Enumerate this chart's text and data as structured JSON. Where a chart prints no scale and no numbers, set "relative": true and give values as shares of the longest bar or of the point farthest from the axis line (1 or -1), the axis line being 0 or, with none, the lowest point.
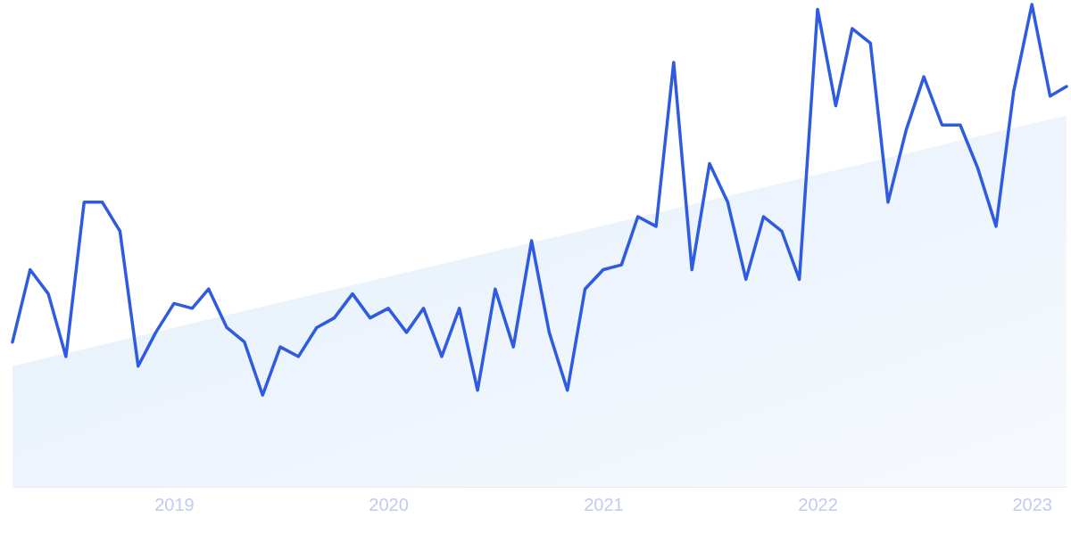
{
  "chart_data": {
    "type": "line",
    "relative": true,
    "tick_labels": "x",
    "marker": "none",
    "line_style": "solid",
    "xlim": [
      "2018-04",
      "2023-03"
    ],
    "xticks": [
      "2019",
      "2020",
      "2021",
      "2022",
      "2023"
    ],
    "series": [
      {
        "type": "area",
        "color": "#e3eefb",
        "x": [
          "2018-04",
          "2023-03"
        ],
        "values": [
          0.25,
          0.77
        ]
      },
      {
        "color": "#2e5be0",
        "x": [
          "2018-04",
          "2018-05",
          "2018-06",
          "2018-07",
          "2018-08",
          "2018-09",
          "2018-10",
          "2018-11",
          "2018-12",
          "2019-01",
          "2019-02",
          "2019-03",
          "2019-04",
          "2019-05",
          "2019-06",
          "2019-07",
          "2019-08",
          "2019-09",
          "2019-10",
          "2019-11",
          "2019-12",
          "2020-01",
          "2020-02",
          "2020-03",
          "2020-04",
          "2020-05",
          "2020-06",
          "2020-07",
          "2020-08",
          "2020-09",
          "2020-10",
          "2020-11",
          "2020-12",
          "2021-01",
          "2021-02",
          "2021-03",
          "2021-04",
          "2021-05",
          "2021-06",
          "2021-07",
          "2021-08",
          "2021-09",
          "2021-10",
          "2021-11",
          "2021-12",
          "2022-01",
          "2022-02",
          "2022-03",
          "2022-04",
          "2022-05",
          "2022-06",
          "2022-07",
          "2022-08",
          "2022-09",
          "2022-10",
          "2022-11",
          "2022-12",
          "2023-01",
          "2023-02",
          "2023-03"
        ],
        "values": [
          0.3,
          0.45,
          0.4,
          0.27,
          0.59,
          0.59,
          0.53,
          0.25,
          0.32,
          0.38,
          0.37,
          0.41,
          0.33,
          0.3,
          0.19,
          0.29,
          0.27,
          0.33,
          0.35,
          0.4,
          0.35,
          0.37,
          0.32,
          0.37,
          0.27,
          0.37,
          0.2,
          0.41,
          0.29,
          0.51,
          0.32,
          0.2,
          0.41,
          0.45,
          0.46,
          0.56,
          0.54,
          0.88,
          0.45,
          0.67,
          0.59,
          0.43,
          0.56,
          0.53,
          0.43,
          0.99,
          0.79,
          0.95,
          0.92,
          0.59,
          0.74,
          0.85,
          0.75,
          0.75,
          0.66,
          0.54,
          0.82,
          1.0,
          0.81,
          0.83
        ]
      }
    ]
  }
}
